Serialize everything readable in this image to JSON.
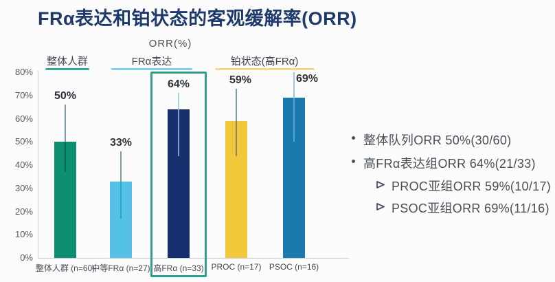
{
  "title": "FRα表达和铂状态的客观缓解率(ORR)",
  "chart_data": {
    "type": "bar",
    "title": "FRα表达和铂状态的客观缓解率(ORR)",
    "axis_title": "ORR(%)",
    "ylim": [
      0,
      80
    ],
    "ytick_labels": [
      "80%",
      "70%",
      "60%",
      "50%",
      "40%",
      "30%",
      "20%",
      "10%",
      "0%"
    ],
    "grid": false,
    "legend_position": "none",
    "groups": [
      {
        "label": "整体人群",
        "underline_color": "#3aa891",
        "bar_indexes": [
          0
        ]
      },
      {
        "label": "FRα表达",
        "underline_color": "#7fd0ea",
        "bar_indexes": [
          1,
          2
        ]
      },
      {
        "label": "铂状态(高FRα)",
        "underline_color": "#f5d98b",
        "bar_indexes": [
          3,
          4
        ]
      }
    ],
    "bars": [
      {
        "category": "整体人群 (n=60)",
        "value": 50,
        "value_label": "50%",
        "color": "#0e8f72",
        "ci": [
          37,
          66
        ],
        "err_above": "#7e97ae",
        "err_inside": "#0a6b55",
        "highlighted": false
      },
      {
        "category": "中等FRα (n=27)",
        "value": 33,
        "value_label": "33%",
        "color": "#55c1e7",
        "ci": [
          17,
          46
        ],
        "err_above": "#7e97ae",
        "err_inside": "#2e9fc7",
        "highlighted": false
      },
      {
        "category": "高FRα (n=33)",
        "value": 64,
        "value_label": "64%",
        "color": "#16316d",
        "ci": [
          44,
          71
        ],
        "err_above": "#a9cfe8",
        "err_inside": "#7aa3cc",
        "highlighted": true
      },
      {
        "category": "PROC (n=17)",
        "value": 59,
        "value_label": "59%",
        "color": "#f1c83a",
        "ci": [
          44,
          73
        ],
        "err_above": "#7e97ae",
        "err_inside": "#8f8464",
        "highlighted": false
      },
      {
        "category": "PSOC (n=16)",
        "value": 69,
        "value_label": "69%",
        "color": "#1a7aab",
        "ci": [
          50,
          80
        ],
        "err_above": "#9ec9e2",
        "err_inside": "#57a3cc",
        "highlighted": false
      }
    ],
    "highlight_box_color": "#2f9e8a"
  },
  "notes": {
    "items": [
      {
        "level": 1,
        "marker": "dot",
        "text": "整体队列ORR 50%(30/60)"
      },
      {
        "level": 1,
        "marker": "dot",
        "text": "高FRα表达组ORR 64%(21/33)"
      },
      {
        "level": 2,
        "marker": "arrow",
        "text": "PROC亚组ORR 59%(10/17)"
      },
      {
        "level": 2,
        "marker": "arrow",
        "text": "PSOC亚组ORR 69%(11/16)"
      }
    ]
  },
  "colors": {
    "title_text": "#1e3a6d",
    "axis_line": "#c9ced6",
    "tick_text": "#55595f",
    "value_text": "#2e3338",
    "note_text": "#4a4f55"
  }
}
